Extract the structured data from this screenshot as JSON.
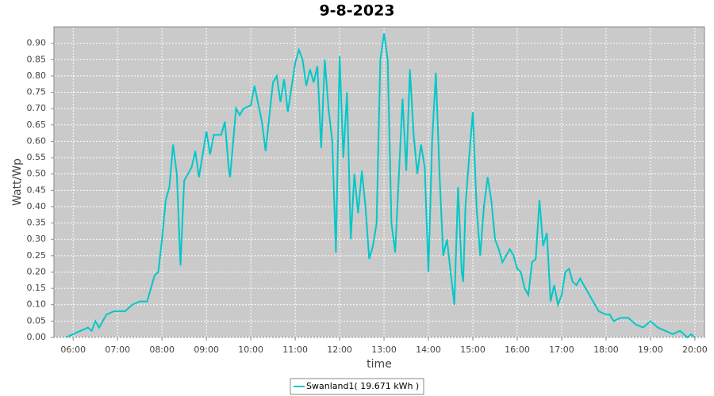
{
  "chart_data": {
    "type": "line",
    "title": "9-8-2023",
    "x_label": "time",
    "y_label": "Watt/Wp",
    "x": [
      "05:50",
      "06:00",
      "06:10",
      "06:20",
      "06:25",
      "06:30",
      "06:35",
      "06:45",
      "06:55",
      "07:10",
      "07:20",
      "07:30",
      "07:40",
      "07:50",
      "07:55",
      "08:00",
      "08:05",
      "08:10",
      "08:15",
      "08:20",
      "08:25",
      "08:30",
      "08:40",
      "08:45",
      "08:50",
      "09:00",
      "09:05",
      "09:10",
      "09:20",
      "09:25",
      "09:30",
      "09:32",
      "09:40",
      "09:45",
      "09:50",
      "10:00",
      "10:05",
      "10:15",
      "10:20",
      "10:30",
      "10:35",
      "10:40",
      "10:45",
      "10:50",
      "11:00",
      "11:05",
      "11:10",
      "11:15",
      "11:20",
      "11:25",
      "11:30",
      "11:35",
      "11:40",
      "11:45",
      "11:50",
      "11:55",
      "12:00",
      "12:05",
      "12:10",
      "12:15",
      "12:20",
      "12:25",
      "12:30",
      "12:35",
      "12:40",
      "12:45",
      "12:50",
      "12:55",
      "13:00",
      "13:05",
      "13:10",
      "13:15",
      "13:20",
      "13:25",
      "13:30",
      "13:35",
      "13:40",
      "13:45",
      "13:50",
      "13:55",
      "14:00",
      "14:05",
      "14:10",
      "14:15",
      "14:20",
      "14:25",
      "14:30",
      "14:35",
      "14:40",
      "14:45",
      "14:47",
      "14:50",
      "14:55",
      "15:00",
      "15:05",
      "15:10",
      "15:15",
      "15:20",
      "15:25",
      "15:30",
      "15:35",
      "15:40",
      "15:45",
      "15:50",
      "15:55",
      "16:00",
      "16:05",
      "16:10",
      "16:15",
      "16:20",
      "16:25",
      "16:30",
      "16:35",
      "16:40",
      "16:45",
      "16:50",
      "16:55",
      "17:00",
      "17:05",
      "17:10",
      "17:15",
      "17:20",
      "17:25",
      "17:30",
      "17:40",
      "17:50",
      "18:00",
      "18:05",
      "18:10",
      "18:20",
      "18:30",
      "18:40",
      "18:50",
      "19:00",
      "19:10",
      "19:20",
      "19:30",
      "19:40",
      "19:50",
      "19:55",
      "20:00"
    ],
    "series": [
      {
        "name": "Swanland1( 19.671 kWh )",
        "color": "#00c8c8",
        "values": [
          0.0,
          0.01,
          0.02,
          0.03,
          0.02,
          0.05,
          0.03,
          0.07,
          0.08,
          0.08,
          0.1,
          0.11,
          0.11,
          0.19,
          0.2,
          0.3,
          0.42,
          0.46,
          0.59,
          0.5,
          0.22,
          0.48,
          0.52,
          0.57,
          0.49,
          0.63,
          0.56,
          0.62,
          0.62,
          0.66,
          0.52,
          0.49,
          0.7,
          0.68,
          0.7,
          0.71,
          0.77,
          0.66,
          0.57,
          0.78,
          0.8,
          0.72,
          0.79,
          0.69,
          0.84,
          0.88,
          0.85,
          0.77,
          0.82,
          0.78,
          0.83,
          0.58,
          0.85,
          0.7,
          0.6,
          0.26,
          0.86,
          0.55,
          0.75,
          0.3,
          0.5,
          0.38,
          0.51,
          0.4,
          0.24,
          0.28,
          0.35,
          0.85,
          0.93,
          0.85,
          0.35,
          0.26,
          0.49,
          0.73,
          0.51,
          0.82,
          0.62,
          0.5,
          0.59,
          0.52,
          0.2,
          0.6,
          0.81,
          0.5,
          0.25,
          0.3,
          0.2,
          0.1,
          0.46,
          0.2,
          0.17,
          0.4,
          0.55,
          0.69,
          0.4,
          0.25,
          0.4,
          0.49,
          0.42,
          0.3,
          0.27,
          0.23,
          0.25,
          0.27,
          0.25,
          0.21,
          0.2,
          0.15,
          0.13,
          0.23,
          0.24,
          0.42,
          0.28,
          0.32,
          0.11,
          0.16,
          0.1,
          0.13,
          0.2,
          0.21,
          0.17,
          0.16,
          0.18,
          0.16,
          0.12,
          0.08,
          0.07,
          0.07,
          0.05,
          0.06,
          0.06,
          0.04,
          0.03,
          0.05,
          0.03,
          0.02,
          0.01,
          0.02,
          0.0,
          0.01,
          0.0
        ]
      }
    ],
    "xlim": [
      "05:34",
      "20:13"
    ],
    "xticks": [
      "06:00",
      "07:00",
      "08:00",
      "09:00",
      "10:00",
      "11:00",
      "12:00",
      "13:00",
      "14:00",
      "15:00",
      "16:00",
      "17:00",
      "18:00",
      "19:00",
      "20:00"
    ],
    "ylim": [
      0,
      0.95
    ],
    "yticks": [
      {
        "value": 0,
        "label": "0.00"
      },
      {
        "value": 0.05,
        "label": "0.05"
      },
      {
        "value": 0.1,
        "label": "0.10"
      },
      {
        "value": 0.15,
        "label": "0.15"
      },
      {
        "value": 0.2,
        "label": "0.20"
      },
      {
        "value": 0.25,
        "label": "0.25"
      },
      {
        "value": 0.3,
        "label": "0.30"
      },
      {
        "value": 0.35,
        "label": "0.35"
      },
      {
        "value": 0.4,
        "label": "0.40"
      },
      {
        "value": 0.45,
        "label": "0.45"
      },
      {
        "value": 0.5,
        "label": "0.50"
      },
      {
        "value": 0.55,
        "label": "0.55"
      },
      {
        "value": 0.6,
        "label": "0.60"
      },
      {
        "value": 0.65,
        "label": "0.65"
      },
      {
        "value": 0.7,
        "label": "0.70"
      },
      {
        "value": 0.75,
        "label": "0.75"
      },
      {
        "value": 0.8,
        "label": "0.80"
      },
      {
        "value": 0.85,
        "label": "0.85"
      },
      {
        "value": 0.9,
        "label": "0.90"
      }
    ],
    "grid": true,
    "legend": "bottom"
  }
}
